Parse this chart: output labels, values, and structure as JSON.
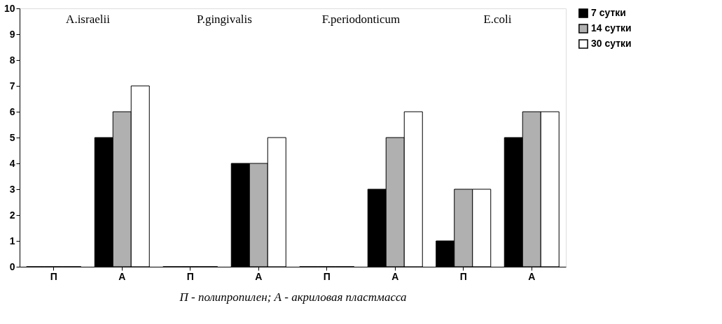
{
  "chart_data": {
    "type": "bar",
    "categories": [
      "П",
      "А",
      "П",
      "А",
      "П",
      "А",
      "П",
      "А"
    ],
    "series": [
      {
        "name": "7 сутки",
        "color": "#000000",
        "values": [
          0,
          5,
          0,
          4,
          0,
          3,
          1,
          5
        ]
      },
      {
        "name": "14 сутки",
        "color": "#b0b0b0",
        "values": [
          0,
          6,
          0,
          4,
          0,
          5,
          3,
          6
        ]
      },
      {
        "name": "30 сутки",
        "color": "#ffffff",
        "values": [
          0,
          7,
          0,
          5,
          0,
          6,
          3,
          6
        ]
      }
    ],
    "ylim": [
      0,
      10
    ],
    "yticks": [
      0,
      1,
      2,
      3,
      4,
      5,
      6,
      7,
      8,
      9,
      10
    ],
    "grid": false,
    "legend": "right",
    "xlabel": "П - полипропилен; А - акриловая пластмасса",
    "annotations": [
      "A.israelii",
      "P.gingivalis",
      "F.periodonticum",
      "E.coli"
    ]
  }
}
